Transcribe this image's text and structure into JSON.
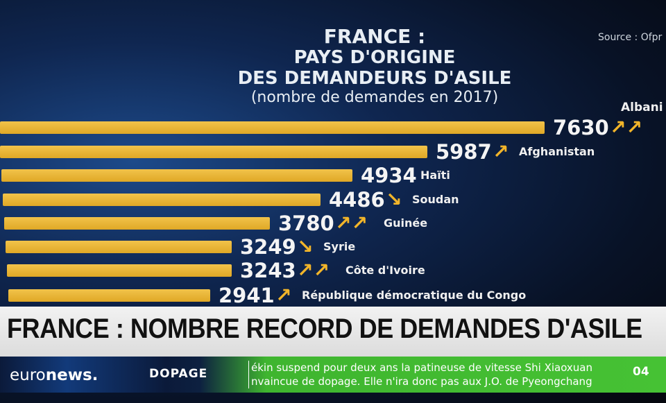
{
  "chart_data": {
    "type": "bar",
    "orientation": "horizontal",
    "title": "FRANCE : PAYS D'ORIGINE DES DEMANDEURS D'ASILE",
    "title_lines": [
      "FRANCE :",
      "PAYS D'ORIGINE",
      "DES DEMANDEURS D'ASILE"
    ],
    "subtitle": "(nombre de demandes en 2017)",
    "source": "Source : Ofpr",
    "categories": [
      "Albani",
      "Afghanistan",
      "Haïti",
      "Soudan",
      "Guinée",
      "Syrie",
      "Côte d'Ivoire",
      "République démocratique du Congo"
    ],
    "values": [
      7630,
      5987,
      4934,
      4486,
      3780,
      3249,
      3243,
      2941
    ],
    "trends": [
      "↗↗",
      "↗",
      "",
      "↘",
      "↗↗",
      "↘",
      "↗↗",
      "↗"
    ],
    "xlim": [
      0,
      7630
    ],
    "colors": {
      "bar": "#e8b22f",
      "arrow": "#f2b52a"
    }
  },
  "banner": {
    "headline": "FRANCE : NOMBRE RECORD DE DEMANDES D'ASILE"
  },
  "ticker": {
    "logo_a": "euro",
    "logo_b": "news",
    "logo_dot": ".",
    "section": "DOPAGE",
    "lines": [
      "ékin suspend pour deux ans la patineuse de vitesse Shi Xiaoxuan",
      "nvaincue de dopage. Elle n'ira donc pas aux J.O. de Pyeongchang"
    ],
    "page": "04"
  }
}
